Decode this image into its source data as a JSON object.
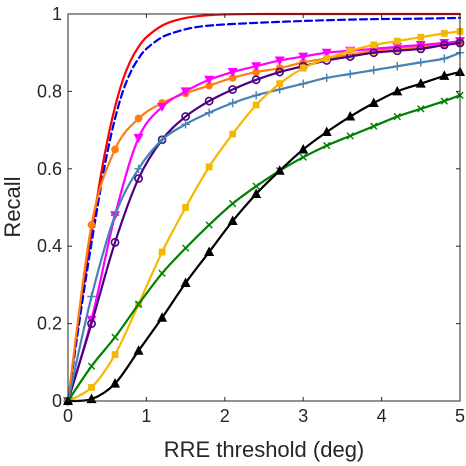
{
  "chart_data": {
    "type": "line",
    "title": "",
    "xlabel": "RRE threshold (deg)",
    "ylabel": "Recall",
    "xlim": [
      0,
      5
    ],
    "ylim": [
      0,
      1
    ],
    "x_ticks": [
      "0",
      "1",
      "2",
      "3",
      "4",
      "5"
    ],
    "y_ticks": [
      "0",
      "0.2",
      "0.4",
      "0.6",
      "0.8",
      "1"
    ],
    "x_tick_values": [
      0,
      1,
      2,
      3,
      4,
      5
    ],
    "y_tick_values": [
      0,
      0.2,
      0.4,
      0.6,
      0.8,
      1
    ],
    "grid": false,
    "legend": "none",
    "series": [
      {
        "color": "#ff0000",
        "dash": "solid",
        "marker": "none",
        "x": [
          0,
          0.2,
          0.4,
          0.5,
          0.6,
          0.7,
          0.8,
          0.9,
          1.0,
          1.2,
          1.4,
          1.6,
          1.8,
          2.0,
          2.5,
          3.0,
          4.0,
          5.0
        ],
        "y": [
          0,
          0.3,
          0.56,
          0.67,
          0.76,
          0.83,
          0.88,
          0.915,
          0.94,
          0.97,
          0.985,
          0.993,
          0.997,
          0.999,
          1.0,
          1.0,
          1.0,
          1.0
        ]
      },
      {
        "color": "#0000ee",
        "dash": "dashed",
        "marker": "none",
        "x": [
          0,
          0.2,
          0.4,
          0.5,
          0.6,
          0.7,
          0.8,
          0.9,
          1.0,
          1.2,
          1.4,
          1.6,
          1.8,
          2.0,
          2.5,
          3.0,
          3.5,
          4.0,
          4.5,
          5.0
        ],
        "y": [
          0,
          0.28,
          0.53,
          0.64,
          0.73,
          0.8,
          0.85,
          0.885,
          0.91,
          0.94,
          0.955,
          0.965,
          0.97,
          0.973,
          0.978,
          0.982,
          0.985,
          0.987,
          0.988,
          0.99
        ]
      },
      {
        "color": "#ff7f0e",
        "dash": "solid",
        "marker": "circle-filled",
        "x": [
          0,
          0.3,
          0.6,
          0.9,
          1.2,
          1.5,
          1.8,
          2.1,
          2.4,
          2.7,
          3.0,
          3.3,
          3.6,
          3.9,
          4.2,
          4.5,
          4.8,
          5.0
        ],
        "y": [
          0,
          0.455,
          0.65,
          0.73,
          0.77,
          0.795,
          0.815,
          0.835,
          0.85,
          0.86,
          0.875,
          0.885,
          0.895,
          0.905,
          0.91,
          0.915,
          0.92,
          0.925
        ]
      },
      {
        "color": "#ff00ff",
        "dash": "solid",
        "marker": "triangle-down-filled",
        "x": [
          0,
          0.3,
          0.6,
          0.9,
          1.2,
          1.5,
          1.8,
          2.1,
          2.4,
          2.7,
          3.0,
          3.3,
          3.6,
          3.9,
          4.2,
          4.5,
          4.8,
          5.0
        ],
        "y": [
          0,
          0.21,
          0.48,
          0.68,
          0.76,
          0.8,
          0.83,
          0.85,
          0.865,
          0.88,
          0.89,
          0.9,
          0.905,
          0.91,
          0.915,
          0.92,
          0.925,
          0.93
        ]
      },
      {
        "color": "#4b0082",
        "dash": "solid",
        "marker": "circle-open",
        "x": [
          0,
          0.3,
          0.6,
          0.9,
          1.2,
          1.5,
          1.8,
          2.1,
          2.4,
          2.7,
          3.0,
          3.3,
          3.6,
          3.9,
          4.2,
          4.5,
          4.8,
          5.0
        ],
        "y": [
          0,
          0.2,
          0.41,
          0.575,
          0.675,
          0.735,
          0.775,
          0.805,
          0.83,
          0.85,
          0.865,
          0.88,
          0.89,
          0.9,
          0.905,
          0.91,
          0.92,
          0.925
        ]
      },
      {
        "color": "#4682b4",
        "dash": "solid",
        "marker": "plus",
        "x": [
          0,
          0.3,
          0.6,
          0.9,
          1.2,
          1.5,
          1.8,
          2.1,
          2.4,
          2.7,
          3.0,
          3.3,
          3.6,
          3.9,
          4.2,
          4.5,
          4.8,
          5.0
        ],
        "y": [
          0,
          0.27,
          0.48,
          0.6,
          0.675,
          0.715,
          0.745,
          0.77,
          0.79,
          0.805,
          0.82,
          0.835,
          0.845,
          0.855,
          0.865,
          0.875,
          0.885,
          0.9
        ]
      },
      {
        "color": "#f5b800",
        "dash": "solid",
        "marker": "square-filled",
        "x": [
          0,
          0.3,
          0.6,
          0.9,
          1.2,
          1.5,
          1.8,
          2.1,
          2.4,
          2.7,
          3.0,
          3.3,
          3.6,
          3.9,
          4.2,
          4.5,
          4.8,
          5.0
        ],
        "y": [
          0,
          0.035,
          0.12,
          0.25,
          0.385,
          0.5,
          0.605,
          0.69,
          0.765,
          0.82,
          0.86,
          0.885,
          0.905,
          0.92,
          0.93,
          0.94,
          0.95,
          0.955
        ]
      },
      {
        "color": "#008000",
        "dash": "solid",
        "marker": "x",
        "x": [
          0,
          0.3,
          0.6,
          0.9,
          1.2,
          1.5,
          1.8,
          2.1,
          2.4,
          2.7,
          3.0,
          3.3,
          3.6,
          3.9,
          4.2,
          4.5,
          4.8,
          5.0
        ],
        "y": [
          0,
          0.09,
          0.165,
          0.25,
          0.33,
          0.395,
          0.455,
          0.51,
          0.555,
          0.595,
          0.63,
          0.66,
          0.685,
          0.71,
          0.735,
          0.755,
          0.775,
          0.79
        ]
      },
      {
        "color": "#000000",
        "dash": "solid",
        "marker": "triangle-up-filled",
        "x": [
          0,
          0.3,
          0.6,
          0.9,
          1.2,
          1.5,
          1.8,
          2.1,
          2.4,
          2.7,
          3.0,
          3.3,
          3.6,
          3.9,
          4.2,
          4.5,
          4.8,
          5.0
        ],
        "y": [
          0,
          0.005,
          0.045,
          0.13,
          0.215,
          0.305,
          0.385,
          0.465,
          0.535,
          0.595,
          0.65,
          0.695,
          0.735,
          0.77,
          0.8,
          0.82,
          0.84,
          0.85
        ]
      }
    ]
  }
}
